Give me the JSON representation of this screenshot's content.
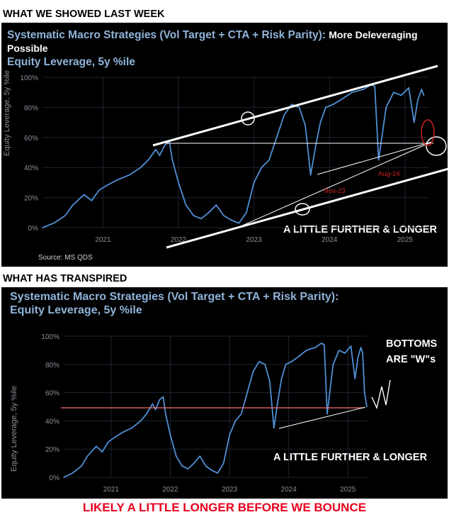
{
  "headings": {
    "top": "WHAT WE SHOWED LAST WEEK",
    "middle": "WHAT HAS TRANSPIRED",
    "footer": "LIKELY A LITTLE LONGER BEFORE WE BOUNCE"
  },
  "colors": {
    "line": "#4f8fd4",
    "trend": "#ffffff",
    "marker": "#d02020",
    "hline_bottom": "#ff6b6b",
    "footer_text": "#e8001c"
  },
  "chart_data": [
    {
      "type": "line",
      "title": "Systematic Macro Strategies (Vol Target + CTA + Risk Parity):",
      "title_suffix": "More Deleveraging Possible",
      "subtitle": "Equity Leverage, 5y %ile",
      "ylabel": "Equity Leverage, 5y %ile",
      "ylim": [
        0,
        100
      ],
      "yticks": [
        "0%",
        "20%",
        "40%",
        "60%",
        "80%",
        "100%"
      ],
      "xticks": [
        "2021",
        "2022",
        "2023",
        "2024",
        "2025"
      ],
      "source": "Source: MS QDS",
      "annotations": {
        "main": "A LITTLE FURTHER & LONGER",
        "nov23": "Nov-23",
        "aug24": "Aug-24"
      },
      "series": [
        {
          "x": [
            2020.2,
            2020.35,
            2020.5,
            2020.6,
            2020.75,
            2020.85,
            2020.95,
            2021.05,
            2021.2,
            2021.35,
            2021.5,
            2021.6,
            2021.7,
            2021.75,
            2021.82,
            2021.88,
            2021.92,
            2022.0,
            2022.1,
            2022.2,
            2022.3,
            2022.4,
            2022.5,
            2022.6,
            2022.7,
            2022.8,
            2022.9,
            2023.0,
            2023.1,
            2023.2,
            2023.3,
            2023.4,
            2023.5,
            2023.6,
            2023.68,
            2023.75,
            2023.82,
            2023.88,
            2023.95,
            2024.05,
            2024.15,
            2024.3,
            2024.45,
            2024.55,
            2024.6,
            2024.65,
            2024.75,
            2024.85,
            2024.95,
            2025.05,
            2025.12,
            2025.17,
            2025.22,
            2025.25
          ],
          "values": [
            0,
            3,
            8,
            15,
            22,
            18,
            25,
            28,
            32,
            35,
            40,
            45,
            52,
            48,
            55,
            57,
            45,
            30,
            15,
            8,
            6,
            10,
            15,
            8,
            5,
            3,
            10,
            30,
            40,
            45,
            60,
            75,
            82,
            80,
            68,
            35,
            55,
            70,
            80,
            82,
            85,
            90,
            92,
            95,
            94,
            45,
            80,
            90,
            88,
            93,
            70,
            85,
            92,
            88
          ]
        }
      ]
    },
    {
      "type": "line",
      "title": "Systematic Macro Strategies (Vol Target + CTA + Risk Parity):",
      "subtitle": "Equity Leverage, 5y %ile",
      "ylabel": "Equity Leverage, 5y %ile",
      "ylim": [
        0,
        100
      ],
      "yticks": [
        "0%",
        "20%",
        "40%",
        "60%",
        "80%",
        "100%"
      ],
      "xticks": [
        "2021",
        "2022",
        "2023",
        "2024",
        "2025"
      ],
      "annotations": {
        "bottoms_line1": "BOTTOMS",
        "bottoms_line2": "ARE \"W\"s",
        "main": "A LITTLE FURTHER & LONGER"
      },
      "series": [
        {
          "x": [
            2020.2,
            2020.35,
            2020.5,
            2020.6,
            2020.75,
            2020.85,
            2020.95,
            2021.05,
            2021.2,
            2021.35,
            2021.5,
            2021.6,
            2021.7,
            2021.75,
            2021.82,
            2021.88,
            2021.92,
            2022.0,
            2022.1,
            2022.2,
            2022.3,
            2022.4,
            2022.5,
            2022.6,
            2022.7,
            2022.8,
            2022.9,
            2023.0,
            2023.1,
            2023.2,
            2023.3,
            2023.4,
            2023.5,
            2023.6,
            2023.68,
            2023.75,
            2023.82,
            2023.88,
            2023.95,
            2024.05,
            2024.15,
            2024.3,
            2024.45,
            2024.55,
            2024.6,
            2024.65,
            2024.75,
            2024.85,
            2024.95,
            2025.05,
            2025.12,
            2025.17,
            2025.22,
            2025.25,
            2025.28,
            2025.32
          ],
          "values": [
            0,
            3,
            8,
            15,
            22,
            18,
            25,
            28,
            32,
            35,
            40,
            45,
            52,
            48,
            55,
            57,
            45,
            30,
            15,
            8,
            6,
            10,
            15,
            8,
            5,
            3,
            10,
            30,
            40,
            45,
            60,
            75,
            82,
            80,
            68,
            35,
            55,
            70,
            80,
            82,
            85,
            90,
            92,
            95,
            94,
            45,
            80,
            90,
            88,
            93,
            70,
            85,
            92,
            88,
            60,
            50
          ]
        }
      ]
    }
  ]
}
